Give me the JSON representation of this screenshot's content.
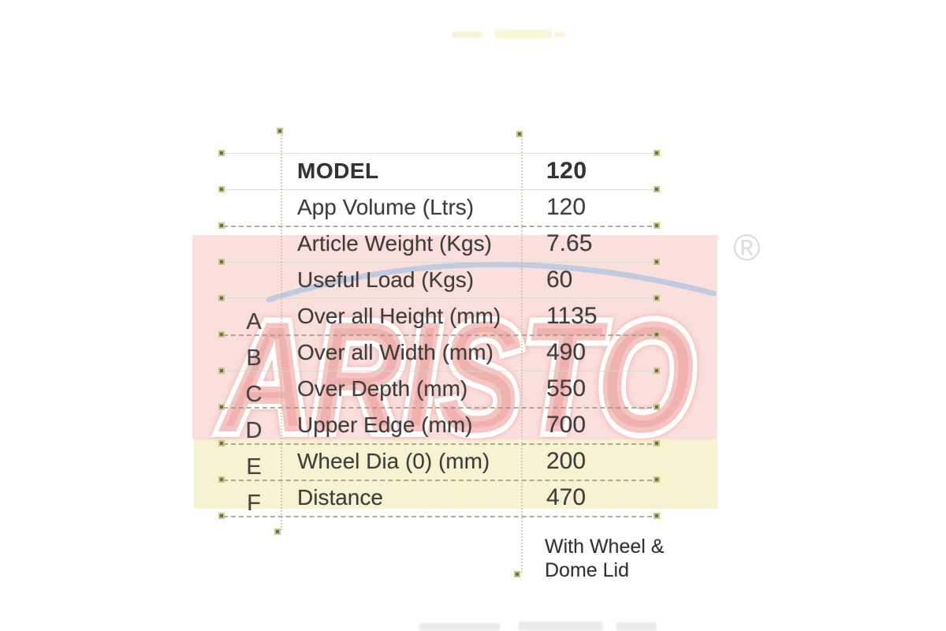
{
  "watermark": {
    "brand_text": "ARISTO",
    "registered_mark": "®",
    "band_pink_color": "#fbdfdd",
    "band_yellow_color": "#f7f3d2",
    "swoosh_color": "#b5c8e3",
    "letter_fill_color": "#f0aeab",
    "letter_outline_color": "#ffffff"
  },
  "table": {
    "header": {
      "label": "MODEL",
      "value": "120"
    },
    "rows": [
      {
        "letter": "",
        "label": "App Volume (Ltrs)",
        "value": "120"
      },
      {
        "letter": "",
        "label": "Article Weight (Kgs)",
        "value": "7.65"
      },
      {
        "letter": "",
        "label": "Useful Load (Kgs)",
        "value": "60"
      },
      {
        "letter": "A",
        "label": "Over all Height (mm)",
        "value": "1135"
      },
      {
        "letter": "B",
        "label": "Over all Width (mm)",
        "value": "490"
      },
      {
        "letter": "C",
        "label": "Over Depth (mm)",
        "value": "550"
      },
      {
        "letter": "D",
        "label": "Upper Edge (mm)",
        "value": "700"
      },
      {
        "letter": "E",
        "label": "Wheel Dia (0) (mm)",
        "value": "200"
      },
      {
        "letter": "F",
        "label": "Distance",
        "value": "470"
      }
    ],
    "footnote_line1": "With Wheel &",
    "footnote_line2": "Dome Lid"
  }
}
